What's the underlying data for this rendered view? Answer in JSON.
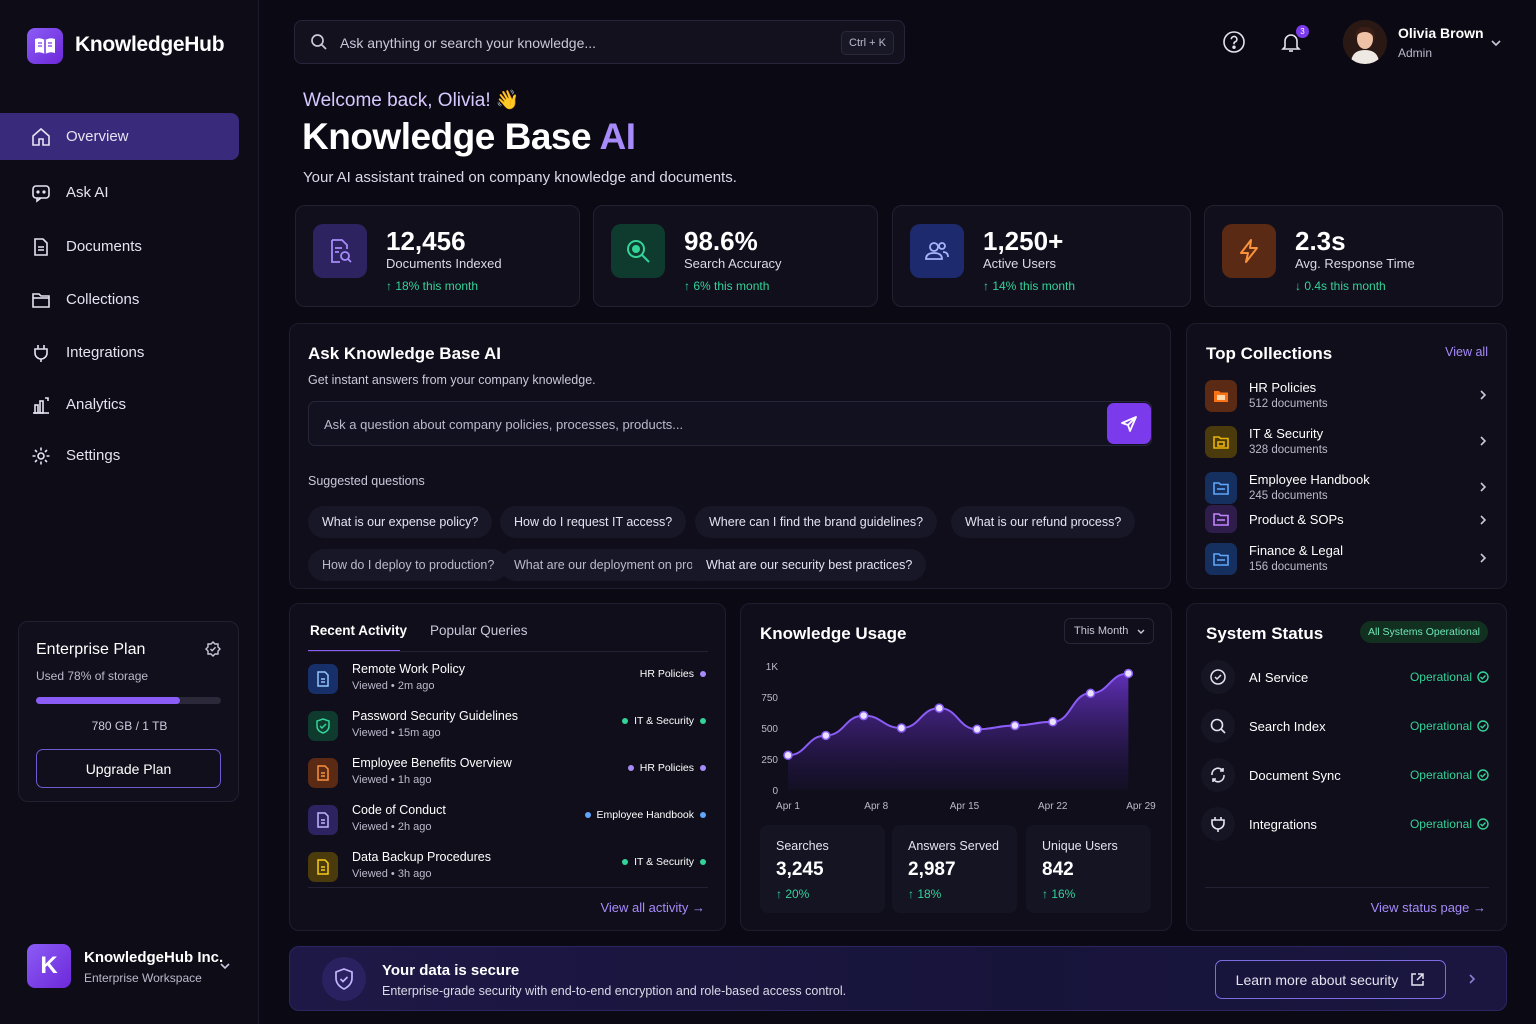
{
  "app": {
    "name": "KnowledgeHub"
  },
  "sidebar": {
    "items": [
      {
        "label": "Overview",
        "icon": "home-icon",
        "active": true
      },
      {
        "label": "Ask AI",
        "icon": "chat-icon"
      },
      {
        "label": "Documents",
        "icon": "document-icon"
      },
      {
        "label": "Collections",
        "icon": "folder-icon"
      },
      {
        "label": "Integrations",
        "icon": "plug-icon"
      },
      {
        "label": "Analytics",
        "icon": "bar-chart-icon"
      },
      {
        "label": "Settings",
        "icon": "gear-icon"
      }
    ],
    "plan": {
      "title": "Enterprise Plan",
      "usage_text": "Used 78% of storage",
      "usage_fraction": 0.78,
      "storage": "780 GB / 1 TB",
      "button": "Upgrade Plan"
    },
    "workspace": {
      "initial": "K",
      "name": "KnowledgeHub Inc.",
      "sub": "Enterprise Workspace"
    }
  },
  "header": {
    "search_placeholder": "Ask anything or search your knowledge...",
    "shortcut": "Ctrl + K",
    "notifications_count": "3",
    "user": {
      "name": "Olivia Brown",
      "role": "Admin"
    }
  },
  "hero": {
    "welcome": "Welcome back, Olivia! 👋",
    "title_main": "Knowledge Base ",
    "title_accent": "AI",
    "subtitle": "Your AI assistant trained on company knowledge and documents."
  },
  "stats": [
    {
      "value": "12,456",
      "label": "Documents Indexed",
      "change": "↑ 18% this month",
      "color": "#8b5cf6"
    },
    {
      "value": "98.6%",
      "label": "Search Accuracy",
      "change": "↑ 6% this month",
      "color": "#10b981"
    },
    {
      "value": "1,250+",
      "label": "Active Users",
      "change": "↑ 14% this month",
      "color": "#6366f1"
    },
    {
      "value": "2.3s",
      "label": "Avg. Response Time",
      "change": "↓ 0.4s this month",
      "color": "#f97316"
    }
  ],
  "ask": {
    "title": "Ask Knowledge Base AI",
    "subtitle": "Get instant answers from your company knowledge.",
    "placeholder": "Ask a question about company policies, processes, products...",
    "suggested_label": "Suggested questions",
    "suggestions": [
      "What is our expense policy?",
      "How do I request IT access?",
      "Where can I find the brand guidelines?",
      "What is our refund process?",
      "How do I deploy to production?",
      "What are our deployment on production?",
      "What are our security best practices?"
    ]
  },
  "collections": {
    "title": "Top Collections",
    "view_all": "View all",
    "items": [
      {
        "name": "HR Policies",
        "count": "512 documents",
        "color": "#f97316"
      },
      {
        "name": "IT & Security",
        "count": "328 documents",
        "color": "#eab308"
      },
      {
        "name": "Employee Handbook",
        "count": "245 documents",
        "color": "#3b82f6"
      },
      {
        "name": "Product & SOPs",
        "count": "",
        "color": "#a855f7"
      },
      {
        "name": "Finance & Legal",
        "count": "156 documents",
        "color": "#3b82f6"
      }
    ]
  },
  "activity": {
    "tabs": [
      "Recent Activity",
      "Popular Queries"
    ],
    "items": [
      {
        "title": "Remote Work Policy",
        "meta": "Viewed • 2m ago",
        "tag": "HR Policies",
        "tag_color": "#a78bfa",
        "icon_color": "#3b82f6"
      },
      {
        "title": "Password Security Guidelines",
        "meta": "Viewed • 15m ago",
        "tag": "IT & Security",
        "tag_color": "#34d399",
        "icon_color": "#10b981"
      },
      {
        "title": "Employee Benefits Overview",
        "meta": "Viewed • 1h ago",
        "tag": "HR Policies",
        "tag_color": "#a78bfa",
        "icon_color": "#f97316"
      },
      {
        "title": "Code of Conduct",
        "meta": "Viewed • 2h ago",
        "tag": "Employee Handbook",
        "tag_color": "#60a5fa",
        "icon_color": "#8b5cf6"
      },
      {
        "title": "Data Backup Procedures",
        "meta": "Viewed • 3h ago",
        "tag": "IT & Security",
        "tag_color": "#34d399",
        "icon_color": "#eab308"
      }
    ],
    "view_all": "View all activity →"
  },
  "usage": {
    "title": "Knowledge Usage",
    "period": "This Month",
    "stats": [
      {
        "label": "Searches",
        "value": "3,245",
        "change": "↑ 20%"
      },
      {
        "label": "Answers Served",
        "value": "2,987",
        "change": "↑ 18%"
      },
      {
        "label": "Unique Users",
        "value": "842",
        "change": "↑ 16%"
      }
    ]
  },
  "chart_data": {
    "type": "area",
    "title": "Knowledge Usage",
    "x_ticks": [
      "Apr 1",
      "Apr 8",
      "Apr 15",
      "Apr 22",
      "Apr 29"
    ],
    "y_ticks": [
      "0",
      "250",
      "500",
      "750",
      "1K"
    ],
    "ylim": [
      0,
      1000
    ],
    "x": [
      1,
      4,
      7,
      10,
      13,
      16,
      19,
      22,
      25,
      28
    ],
    "values": [
      280,
      440,
      600,
      500,
      660,
      490,
      520,
      550,
      780,
      940
    ],
    "series": [
      {
        "values": [
          280,
          440,
          600,
          500,
          660,
          490,
          520,
          550,
          780,
          940
        ]
      }
    ],
    "color": "#8b5cf6"
  },
  "system": {
    "title": "System Status",
    "badge": "All Systems Operational",
    "items": [
      {
        "name": "AI Service",
        "status": "Operational",
        "icon": "shield-check-icon"
      },
      {
        "name": "Search Index",
        "status": "Operational",
        "icon": "search-icon"
      },
      {
        "name": "Document Sync",
        "status": "Operational",
        "icon": "sync-icon"
      },
      {
        "name": "Integrations",
        "status": "Operational",
        "icon": "plug-icon"
      }
    ],
    "view_status": "View status page →"
  },
  "security": {
    "title": "Your data is secure",
    "subtitle": "Enterprise-grade security with end-to-end encryption and role-based access control.",
    "button": "Learn more about security"
  }
}
